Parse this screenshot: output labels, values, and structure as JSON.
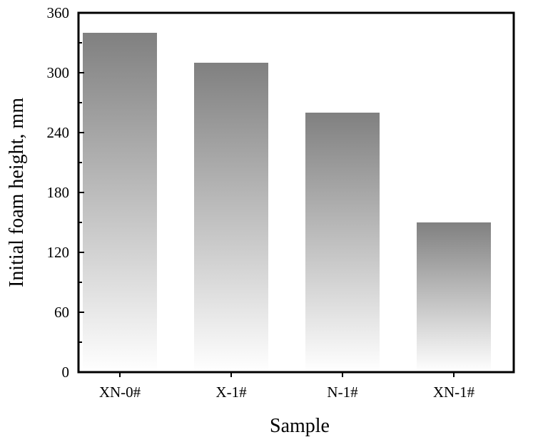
{
  "chart_data": {
    "type": "bar",
    "title": "",
    "xlabel": "Sample",
    "ylabel": "Initial foam height, mm",
    "categories": [
      "XN-0#",
      "X-1#",
      "N-1#",
      "XN-1#"
    ],
    "values": [
      340,
      310,
      260,
      150
    ],
    "ylim": [
      0,
      360
    ],
    "yticks": [
      0,
      60,
      120,
      180,
      240,
      300,
      360
    ],
    "grid": false,
    "legend": "none",
    "bar_color_top": "#808080",
    "bar_color_bottom": "#ffffff"
  }
}
